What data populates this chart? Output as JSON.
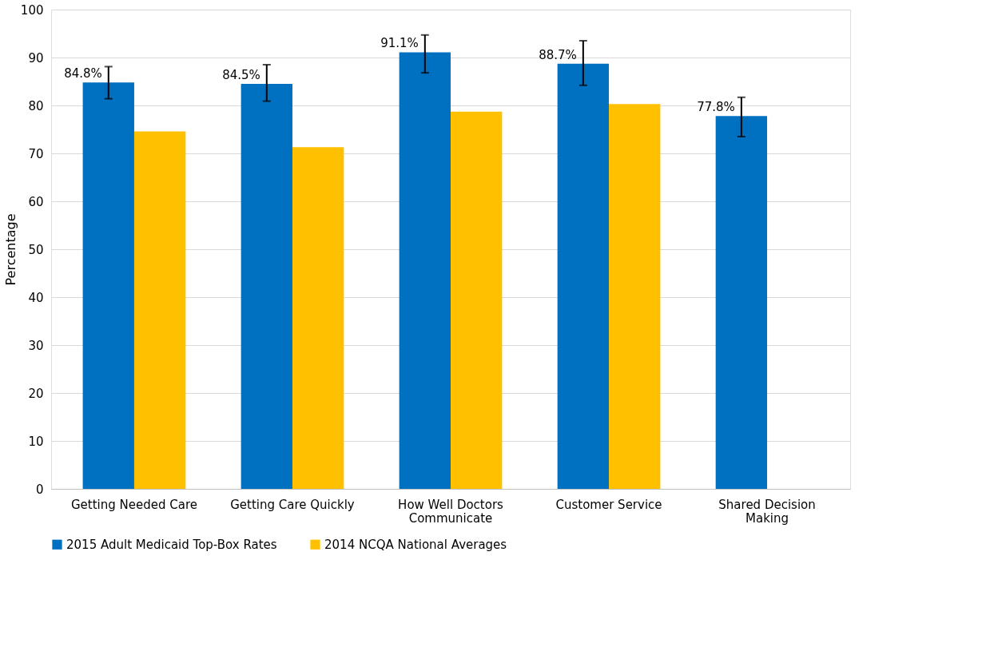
{
  "chart_data": {
    "type": "bar",
    "ylabel": "Percentage",
    "categories": [
      "Getting Needed Care",
      "Getting Care Quickly",
      "How Well Doctors Communicate",
      "Customer Service",
      "Shared Decision Making"
    ],
    "series": [
      {
        "name": "2015 Adult Medicaid Top-Box Rates",
        "color": "#0070c0",
        "values": [
          84.8,
          84.5,
          91.1,
          88.7,
          77.8
        ],
        "value_labels": [
          "84.8%",
          "84.5%",
          "91.1%",
          "88.7%",
          "77.8%"
        ],
        "errors": [
          [
            81.4,
            88.1
          ],
          [
            80.9,
            88.5
          ],
          [
            86.8,
            94.7
          ],
          [
            84.2,
            93.5
          ],
          [
            73.5,
            81.7
          ]
        ]
      },
      {
        "name": "2014 NCQA National Averages",
        "color": "#ffc000",
        "values": [
          74.6,
          71.3,
          78.7,
          80.3,
          null
        ]
      }
    ],
    "ylim": [
      0,
      100
    ],
    "yticks": [
      0,
      10,
      20,
      30,
      40,
      50,
      60,
      70,
      80,
      90,
      100
    ],
    "grid": "y",
    "legend": "bottom"
  }
}
